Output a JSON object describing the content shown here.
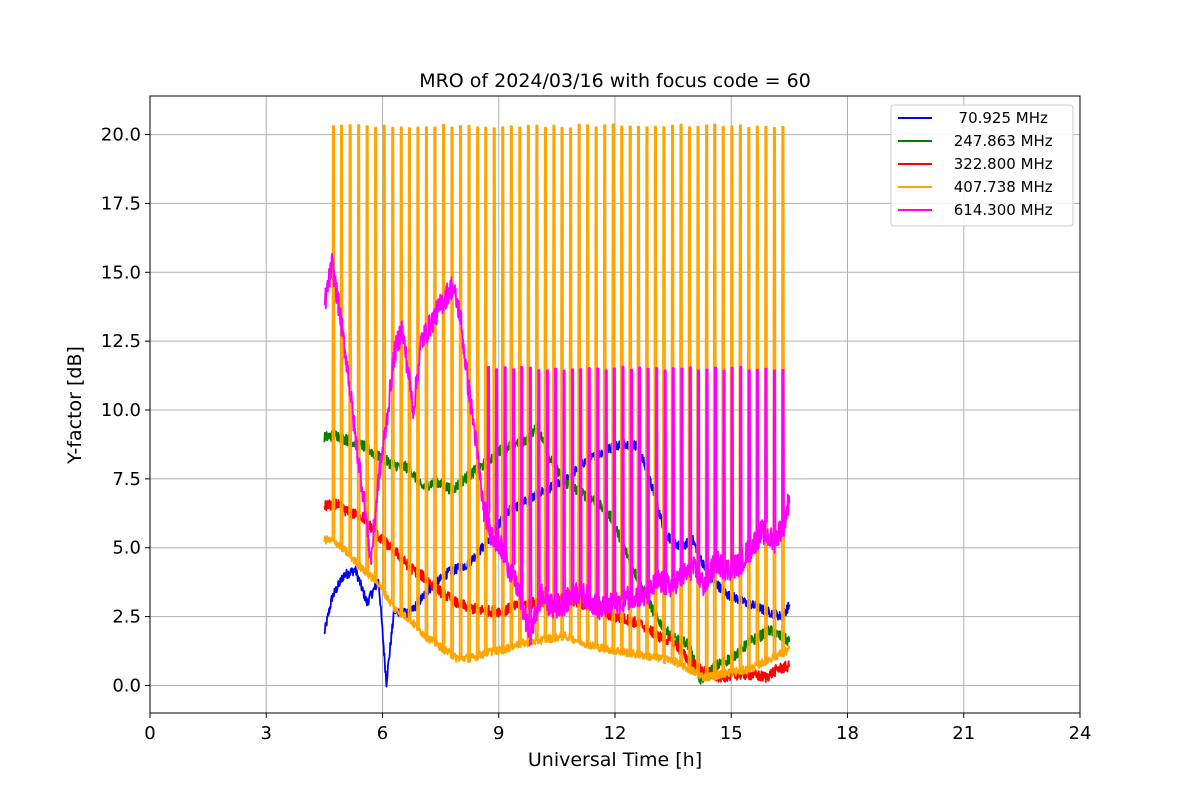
{
  "chart_data": {
    "type": "line",
    "title": "MRO of 2024/03/16 with focus code = 60",
    "xlabel": "Universal Time [h]",
    "ylabel": "Y-factor [dB]",
    "xlim": [
      0,
      24
    ],
    "ylim": [
      -1.0,
      21.4
    ],
    "x_ticks": [
      0,
      3,
      6,
      9,
      12,
      15,
      18,
      21,
      24
    ],
    "y_ticks": [
      0.0,
      2.5,
      5.0,
      7.5,
      10.0,
      12.5,
      15.0,
      17.5,
      20.0
    ],
    "x_tick_labels": [
      "0",
      "3",
      "6",
      "9",
      "12",
      "15",
      "18",
      "21",
      "24"
    ],
    "y_tick_labels": [
      "0.0",
      "2.5",
      "5.0",
      "7.5",
      "10.0",
      "12.5",
      "15.0",
      "17.5",
      "20.0"
    ],
    "grid": true,
    "legend_position": "top-right",
    "series": [
      {
        "name": "  70.925 MHz",
        "color": "#0000ff",
        "x": [
          4.5,
          4.7,
          5.0,
          5.3,
          5.6,
          5.9,
          6.1,
          6.3,
          6.7,
          7.2,
          7.7,
          8.2,
          8.7,
          9.2,
          9.7,
          10.2,
          10.7,
          11.2,
          11.7,
          12.2,
          12.6,
          13.0,
          13.3,
          13.7,
          14.0,
          14.4,
          14.9,
          15.4,
          15.9,
          16.3,
          16.5
        ],
        "y": [
          1.9,
          3.2,
          4.0,
          4.2,
          3.0,
          3.8,
          0.1,
          2.7,
          2.6,
          3.5,
          4.1,
          4.4,
          5.2,
          6.3,
          6.7,
          7.1,
          7.4,
          8.1,
          8.5,
          8.8,
          8.7,
          7.0,
          5.5,
          5.0,
          5.3,
          4.0,
          3.3,
          3.0,
          2.7,
          2.5,
          2.9
        ]
      },
      {
        "name": " 247.863 MHz",
        "color": "#008000",
        "x": [
          4.5,
          4.8,
          5.1,
          5.5,
          5.9,
          6.3,
          6.7,
          7.0,
          7.4,
          7.8,
          8.2,
          8.6,
          9.0,
          9.4,
          9.7,
          10.0,
          10.3,
          10.7,
          11.1,
          11.5,
          11.9,
          12.3,
          12.7,
          13.1,
          13.5,
          13.9,
          14.2,
          14.6,
          15.0,
          15.5,
          16.0,
          16.5
        ],
        "y": [
          9.0,
          9.1,
          8.9,
          8.7,
          8.3,
          8.0,
          7.9,
          7.2,
          7.4,
          7.1,
          7.6,
          8.0,
          8.5,
          8.8,
          8.9,
          9.4,
          8.3,
          7.4,
          7.0,
          6.7,
          6.1,
          4.8,
          3.5,
          2.4,
          1.7,
          1.5,
          0.2,
          0.7,
          1.0,
          1.6,
          2.0,
          1.6
        ]
      },
      {
        "name": " 322.800 MHz",
        "color": "#ff0000",
        "x": [
          4.5,
          4.8,
          5.1,
          5.5,
          5.9,
          6.3,
          6.7,
          7.1,
          7.5,
          7.9,
          8.3,
          8.7,
          9.1,
          9.5,
          9.9,
          10.3,
          10.7,
          11.1,
          11.5,
          11.9,
          12.3,
          12.7,
          13.1,
          13.5,
          13.9,
          14.3,
          14.7,
          15.1,
          15.5,
          15.9,
          16.2,
          16.5
        ],
        "y": [
          6.5,
          6.6,
          6.3,
          6.1,
          5.4,
          4.9,
          4.3,
          3.9,
          3.4,
          3.0,
          2.8,
          2.7,
          2.7,
          2.9,
          3.0,
          3.1,
          3.2,
          3.0,
          2.8,
          2.5,
          2.4,
          2.2,
          1.8,
          1.6,
          0.9,
          0.5,
          0.3,
          0.4,
          0.4,
          0.3,
          0.6,
          0.7
        ]
      },
      {
        "name": " 407.738 MHz",
        "color": "#ffa500",
        "x": [
          4.5,
          4.8,
          5.1,
          5.5,
          5.9,
          6.3,
          6.7,
          7.1,
          7.5,
          7.9,
          8.3,
          8.7,
          9.1,
          9.5,
          9.9,
          10.3,
          10.7,
          11.1,
          11.5,
          11.9,
          12.3,
          12.7,
          13.1,
          13.5,
          13.9,
          14.3,
          14.7,
          15.1,
          15.5,
          15.9,
          16.2,
          16.5
        ],
        "y": [
          5.3,
          5.2,
          4.8,
          4.2,
          3.7,
          2.8,
          2.4,
          1.8,
          1.4,
          1.0,
          1.0,
          1.2,
          1.3,
          1.5,
          1.6,
          1.7,
          1.8,
          1.6,
          1.4,
          1.3,
          1.2,
          1.1,
          1.0,
          0.9,
          0.6,
          0.3,
          0.4,
          0.5,
          0.6,
          0.9,
          1.1,
          1.3
        ]
      },
      {
        "name": " 614.300 MHz",
        "color": "#ff00ff",
        "x": [
          4.5,
          4.7,
          4.9,
          5.1,
          5.3,
          5.5,
          5.7,
          5.9,
          6.1,
          6.3,
          6.5,
          6.8,
          7.0,
          7.2,
          7.5,
          7.8,
          8.0,
          8.2,
          8.4,
          8.6,
          8.8,
          9.0,
          9.2,
          9.5,
          9.8,
          10.1,
          10.4,
          10.7,
          11.0,
          11.3,
          11.6,
          11.9,
          12.2,
          12.5,
          12.8,
          13.1,
          13.4,
          13.7,
          14.0,
          14.3,
          14.6,
          14.9,
          15.2,
          15.5,
          15.8,
          16.1,
          16.4,
          16.5
        ],
        "y": [
          13.8,
          15.3,
          13.5,
          11.5,
          9.0,
          7.0,
          4.5,
          7.5,
          9.5,
          12.0,
          13.0,
          10.0,
          12.5,
          13.0,
          13.8,
          14.5,
          13.5,
          11.0,
          9.0,
          6.5,
          5.5,
          5.2,
          4.5,
          3.5,
          1.8,
          3.3,
          2.8,
          3.0,
          3.4,
          3.2,
          2.8,
          2.9,
          3.1,
          3.3,
          3.2,
          3.8,
          3.6,
          3.9,
          4.3,
          3.6,
          4.5,
          4.2,
          4.4,
          5.0,
          5.6,
          5.2,
          6.0,
          6.9
        ]
      }
    ],
    "spikes": {
      "orange": {
        "color": "#ffa500",
        "x_start": 4.7,
        "x_end": 16.3,
        "count": 54,
        "peak": 20.3,
        "floor": 11.5
      },
      "magenta": {
        "color": "#ff00ff",
        "x_start": 8.7,
        "x_end": 16.3,
        "count": 36,
        "peak": 11.5
      }
    }
  }
}
